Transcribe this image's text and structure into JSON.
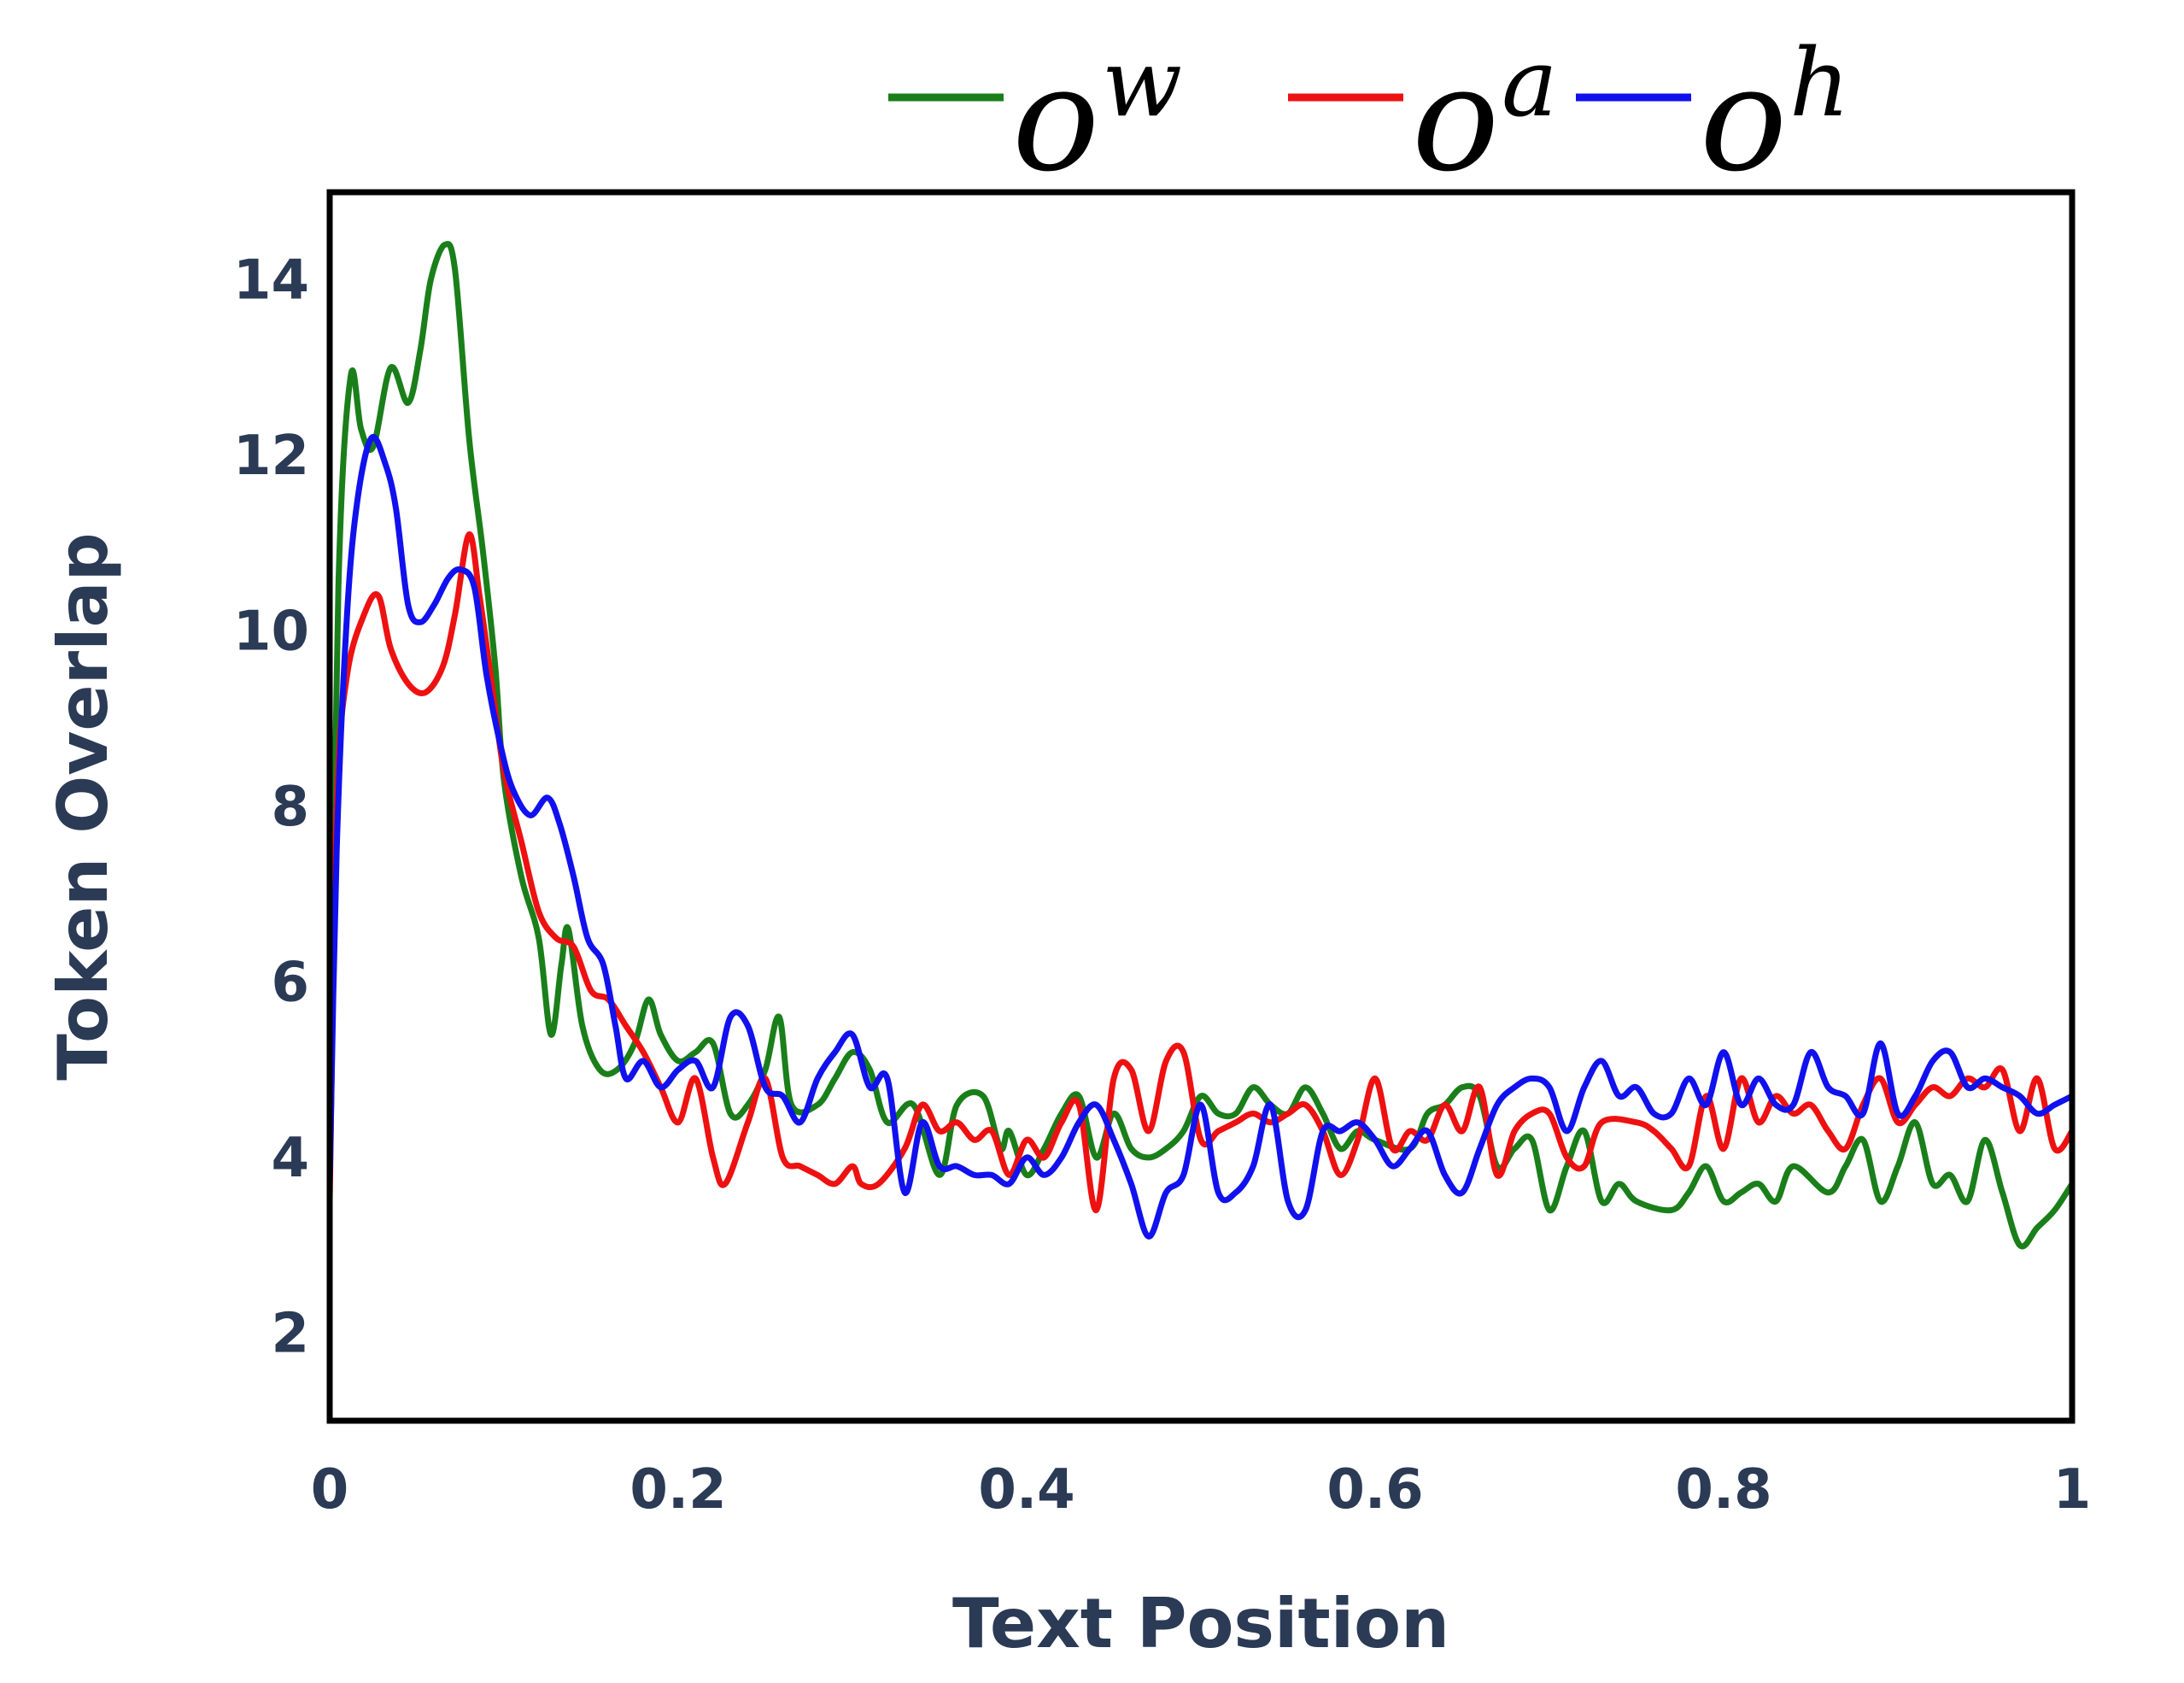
{
  "chart_data": {
    "type": "line",
    "xlabel": "Text Position",
    "ylabel": "Token Overlap",
    "xlim": [
      0,
      1
    ],
    "ylim": [
      1,
      15
    ],
    "xticks": [
      {
        "value": 0,
        "label": "0"
      },
      {
        "value": 0.2,
        "label": "0.2"
      },
      {
        "value": 0.4,
        "label": "0.4"
      },
      {
        "value": 0.6,
        "label": "0.6"
      },
      {
        "value": 0.8,
        "label": "0.8"
      },
      {
        "value": 1,
        "label": "1"
      }
    ],
    "yticks": [
      {
        "value": 2,
        "label": "2"
      },
      {
        "value": 4,
        "label": "4"
      },
      {
        "value": 6,
        "label": "6"
      },
      {
        "value": 8,
        "label": "8"
      },
      {
        "value": 10,
        "label": "10"
      },
      {
        "value": 12,
        "label": "12"
      },
      {
        "value": 14,
        "label": "14"
      }
    ],
    "grid": false,
    "legend_position": "top",
    "series": [
      {
        "name": "o",
        "sup": "w",
        "color": "#1a7f1a",
        "points": [
          [
            0,
            4.2
          ],
          [
            0.005,
            10.5
          ],
          [
            0.012,
            12.9
          ],
          [
            0.018,
            12.3
          ],
          [
            0.025,
            12.1
          ],
          [
            0.035,
            13.0
          ],
          [
            0.045,
            12.6
          ],
          [
            0.052,
            13.2
          ],
          [
            0.058,
            14.0
          ],
          [
            0.066,
            14.4
          ],
          [
            0.072,
            14.1
          ],
          [
            0.08,
            12.2
          ],
          [
            0.088,
            10.9
          ],
          [
            0.095,
            9.6
          ],
          [
            0.1,
            8.3
          ],
          [
            0.11,
            7.2
          ],
          [
            0.12,
            6.5
          ],
          [
            0.127,
            5.4
          ],
          [
            0.133,
            6.2
          ],
          [
            0.137,
            6.6
          ],
          [
            0.145,
            5.5
          ],
          [
            0.155,
            5.0
          ],
          [
            0.165,
            5.0
          ],
          [
            0.175,
            5.3
          ],
          [
            0.183,
            5.8
          ],
          [
            0.19,
            5.4
          ],
          [
            0.2,
            5.1
          ],
          [
            0.21,
            5.2
          ],
          [
            0.22,
            5.3
          ],
          [
            0.23,
            4.5
          ],
          [
            0.24,
            4.6
          ],
          [
            0.25,
            5.0
          ],
          [
            0.258,
            5.6
          ],
          [
            0.265,
            4.6
          ],
          [
            0.28,
            4.6
          ],
          [
            0.29,
            4.9
          ],
          [
            0.3,
            5.2
          ],
          [
            0.31,
            5.0
          ],
          [
            0.32,
            4.4
          ],
          [
            0.335,
            4.6
          ],
          [
            0.35,
            3.8
          ],
          [
            0.36,
            4.6
          ],
          [
            0.375,
            4.7
          ],
          [
            0.385,
            4.1
          ],
          [
            0.39,
            4.3
          ],
          [
            0.4,
            3.8
          ],
          [
            0.41,
            4.1
          ],
          [
            0.42,
            4.5
          ],
          [
            0.43,
            4.7
          ],
          [
            0.44,
            4.0
          ],
          [
            0.45,
            4.5
          ],
          [
            0.46,
            4.1
          ],
          [
            0.47,
            4.0
          ],
          [
            0.48,
            4.1
          ],
          [
            0.49,
            4.3
          ],
          [
            0.5,
            4.7
          ],
          [
            0.51,
            4.5
          ],
          [
            0.52,
            4.5
          ],
          [
            0.53,
            4.8
          ],
          [
            0.54,
            4.6
          ],
          [
            0.55,
            4.5
          ],
          [
            0.56,
            4.8
          ],
          [
            0.57,
            4.5
          ],
          [
            0.58,
            4.1
          ],
          [
            0.59,
            4.3
          ],
          [
            0.6,
            4.2
          ],
          [
            0.62,
            4.1
          ],
          [
            0.63,
            4.5
          ],
          [
            0.64,
            4.6
          ],
          [
            0.65,
            4.8
          ],
          [
            0.66,
            4.7
          ],
          [
            0.67,
            3.9
          ],
          [
            0.68,
            4.1
          ],
          [
            0.69,
            4.2
          ],
          [
            0.7,
            3.4
          ],
          [
            0.71,
            3.9
          ],
          [
            0.72,
            4.3
          ],
          [
            0.73,
            3.5
          ],
          [
            0.74,
            3.7
          ],
          [
            0.75,
            3.5
          ],
          [
            0.77,
            3.4
          ],
          [
            0.78,
            3.6
          ],
          [
            0.79,
            3.9
          ],
          [
            0.8,
            3.5
          ],
          [
            0.81,
            3.6
          ],
          [
            0.82,
            3.7
          ],
          [
            0.83,
            3.5
          ],
          [
            0.84,
            3.9
          ],
          [
            0.86,
            3.6
          ],
          [
            0.87,
            3.9
          ],
          [
            0.88,
            4.2
          ],
          [
            0.89,
            3.5
          ],
          [
            0.9,
            3.9
          ],
          [
            0.91,
            4.4
          ],
          [
            0.92,
            3.7
          ],
          [
            0.93,
            3.8
          ],
          [
            0.94,
            3.5
          ],
          [
            0.95,
            4.2
          ],
          [
            0.96,
            3.6
          ],
          [
            0.97,
            3.0
          ],
          [
            0.98,
            3.2
          ],
          [
            0.99,
            3.4
          ],
          [
            1,
            3.7
          ]
        ]
      },
      {
        "name": "o",
        "sup": "a",
        "color": "#ee1111",
        "points": [
          [
            0,
            3.5
          ],
          [
            0.004,
            8.0
          ],
          [
            0.01,
            9.5
          ],
          [
            0.02,
            10.2
          ],
          [
            0.028,
            10.4
          ],
          [
            0.035,
            9.8
          ],
          [
            0.045,
            9.4
          ],
          [
            0.055,
            9.3
          ],
          [
            0.065,
            9.6
          ],
          [
            0.072,
            10.2
          ],
          [
            0.08,
            11.1
          ],
          [
            0.086,
            10.4
          ],
          [
            0.093,
            9.4
          ],
          [
            0.1,
            8.4
          ],
          [
            0.11,
            7.6
          ],
          [
            0.12,
            6.8
          ],
          [
            0.13,
            6.5
          ],
          [
            0.14,
            6.4
          ],
          [
            0.15,
            5.9
          ],
          [
            0.16,
            5.8
          ],
          [
            0.17,
            5.5
          ],
          [
            0.18,
            5.2
          ],
          [
            0.19,
            4.8
          ],
          [
            0.2,
            4.4
          ],
          [
            0.21,
            4.9
          ],
          [
            0.22,
            4.0
          ],
          [
            0.227,
            3.7
          ],
          [
            0.24,
            4.4
          ],
          [
            0.25,
            4.9
          ],
          [
            0.26,
            4.0
          ],
          [
            0.27,
            3.9
          ],
          [
            0.28,
            3.8
          ],
          [
            0.29,
            3.7
          ],
          [
            0.3,
            3.9
          ],
          [
            0.305,
            3.7
          ],
          [
            0.315,
            3.7
          ],
          [
            0.33,
            4.1
          ],
          [
            0.34,
            4.6
          ],
          [
            0.35,
            4.3
          ],
          [
            0.36,
            4.4
          ],
          [
            0.37,
            4.2
          ],
          [
            0.38,
            4.3
          ],
          [
            0.39,
            3.8
          ],
          [
            0.4,
            4.2
          ],
          [
            0.41,
            4.0
          ],
          [
            0.42,
            4.4
          ],
          [
            0.43,
            4.6
          ],
          [
            0.44,
            3.4
          ],
          [
            0.45,
            4.9
          ],
          [
            0.46,
            5.0
          ],
          [
            0.47,
            4.3
          ],
          [
            0.48,
            5.1
          ],
          [
            0.49,
            5.2
          ],
          [
            0.5,
            4.2
          ],
          [
            0.51,
            4.3
          ],
          [
            0.52,
            4.4
          ],
          [
            0.53,
            4.5
          ],
          [
            0.54,
            4.4
          ],
          [
            0.55,
            4.5
          ],
          [
            0.56,
            4.6
          ],
          [
            0.57,
            4.3
          ],
          [
            0.58,
            3.8
          ],
          [
            0.59,
            4.2
          ],
          [
            0.6,
            4.9
          ],
          [
            0.61,
            4.1
          ],
          [
            0.62,
            4.3
          ],
          [
            0.63,
            4.2
          ],
          [
            0.64,
            4.6
          ],
          [
            0.65,
            4.3
          ],
          [
            0.66,
            4.8
          ],
          [
            0.67,
            3.8
          ],
          [
            0.68,
            4.3
          ],
          [
            0.69,
            4.5
          ],
          [
            0.7,
            4.5
          ],
          [
            0.71,
            4.0
          ],
          [
            0.72,
            3.9
          ],
          [
            0.73,
            4.4
          ],
          [
            0.75,
            4.4
          ],
          [
            0.76,
            4.3
          ],
          [
            0.77,
            4.1
          ],
          [
            0.78,
            3.9
          ],
          [
            0.79,
            4.7
          ],
          [
            0.8,
            4.1
          ],
          [
            0.81,
            4.9
          ],
          [
            0.82,
            4.4
          ],
          [
            0.83,
            4.7
          ],
          [
            0.84,
            4.5
          ],
          [
            0.85,
            4.6
          ],
          [
            0.86,
            4.3
          ],
          [
            0.87,
            4.1
          ],
          [
            0.88,
            4.6
          ],
          [
            0.89,
            4.9
          ],
          [
            0.9,
            4.4
          ],
          [
            0.91,
            4.6
          ],
          [
            0.92,
            4.8
          ],
          [
            0.93,
            4.7
          ],
          [
            0.94,
            4.9
          ],
          [
            0.95,
            4.8
          ],
          [
            0.96,
            5.0
          ],
          [
            0.97,
            4.3
          ],
          [
            0.98,
            4.9
          ],
          [
            0.99,
            4.1
          ],
          [
            1,
            4.3
          ]
        ]
      },
      {
        "name": "o",
        "sup": "h",
        "color": "#1111ee",
        "points": [
          [
            0,
            3.7
          ],
          [
            0.004,
            7.5
          ],
          [
            0.01,
            10.2
          ],
          [
            0.016,
            11.5
          ],
          [
            0.024,
            12.2
          ],
          [
            0.032,
            11.9
          ],
          [
            0.038,
            11.4
          ],
          [
            0.045,
            10.3
          ],
          [
            0.052,
            10.1
          ],
          [
            0.06,
            10.3
          ],
          [
            0.068,
            10.6
          ],
          [
            0.075,
            10.7
          ],
          [
            0.083,
            10.5
          ],
          [
            0.09,
            9.5
          ],
          [
            0.098,
            8.7
          ],
          [
            0.105,
            8.2
          ],
          [
            0.115,
            7.9
          ],
          [
            0.125,
            8.1
          ],
          [
            0.132,
            7.8
          ],
          [
            0.14,
            7.2
          ],
          [
            0.148,
            6.5
          ],
          [
            0.157,
            6.2
          ],
          [
            0.164,
            5.5
          ],
          [
            0.17,
            4.9
          ],
          [
            0.18,
            5.1
          ],
          [
            0.19,
            4.8
          ],
          [
            0.2,
            5.0
          ],
          [
            0.21,
            5.1
          ],
          [
            0.22,
            4.8
          ],
          [
            0.23,
            5.6
          ],
          [
            0.24,
            5.5
          ],
          [
            0.25,
            4.8
          ],
          [
            0.26,
            4.7
          ],
          [
            0.27,
            4.4
          ],
          [
            0.28,
            4.9
          ],
          [
            0.29,
            5.2
          ],
          [
            0.3,
            5.4
          ],
          [
            0.31,
            4.8
          ],
          [
            0.32,
            4.9
          ],
          [
            0.33,
            3.6
          ],
          [
            0.34,
            4.4
          ],
          [
            0.35,
            3.9
          ],
          [
            0.36,
            3.9
          ],
          [
            0.37,
            3.8
          ],
          [
            0.38,
            3.8
          ],
          [
            0.39,
            3.7
          ],
          [
            0.4,
            4.0
          ],
          [
            0.41,
            3.8
          ],
          [
            0.42,
            4.0
          ],
          [
            0.43,
            4.4
          ],
          [
            0.44,
            4.6
          ],
          [
            0.45,
            4.2
          ],
          [
            0.46,
            3.7
          ],
          [
            0.47,
            3.1
          ],
          [
            0.48,
            3.6
          ],
          [
            0.49,
            3.8
          ],
          [
            0.5,
            4.6
          ],
          [
            0.51,
            3.6
          ],
          [
            0.52,
            3.6
          ],
          [
            0.53,
            3.9
          ],
          [
            0.54,
            4.6
          ],
          [
            0.55,
            3.5
          ],
          [
            0.56,
            3.4
          ],
          [
            0.57,
            4.3
          ],
          [
            0.58,
            4.3
          ],
          [
            0.59,
            4.4
          ],
          [
            0.6,
            4.2
          ],
          [
            0.61,
            3.9
          ],
          [
            0.62,
            4.1
          ],
          [
            0.63,
            4.3
          ],
          [
            0.64,
            3.8
          ],
          [
            0.65,
            3.6
          ],
          [
            0.66,
            4.1
          ],
          [
            0.67,
            4.6
          ],
          [
            0.68,
            4.8
          ],
          [
            0.69,
            4.9
          ],
          [
            0.7,
            4.8
          ],
          [
            0.71,
            4.3
          ],
          [
            0.72,
            4.8
          ],
          [
            0.73,
            5.1
          ],
          [
            0.74,
            4.7
          ],
          [
            0.75,
            4.8
          ],
          [
            0.76,
            4.5
          ],
          [
            0.77,
            4.5
          ],
          [
            0.78,
            4.9
          ],
          [
            0.79,
            4.6
          ],
          [
            0.8,
            5.2
          ],
          [
            0.81,
            4.6
          ],
          [
            0.82,
            4.9
          ],
          [
            0.83,
            4.6
          ],
          [
            0.84,
            4.6
          ],
          [
            0.85,
            5.2
          ],
          [
            0.86,
            4.8
          ],
          [
            0.87,
            4.7
          ],
          [
            0.88,
            4.5
          ],
          [
            0.89,
            5.3
          ],
          [
            0.9,
            4.5
          ],
          [
            0.91,
            4.7
          ],
          [
            0.92,
            5.1
          ],
          [
            0.93,
            5.2
          ],
          [
            0.94,
            4.8
          ],
          [
            0.95,
            4.9
          ],
          [
            0.96,
            4.8
          ],
          [
            0.97,
            4.7
          ],
          [
            0.98,
            4.5
          ],
          [
            0.99,
            4.6
          ],
          [
            1,
            4.7
          ]
        ]
      }
    ]
  }
}
